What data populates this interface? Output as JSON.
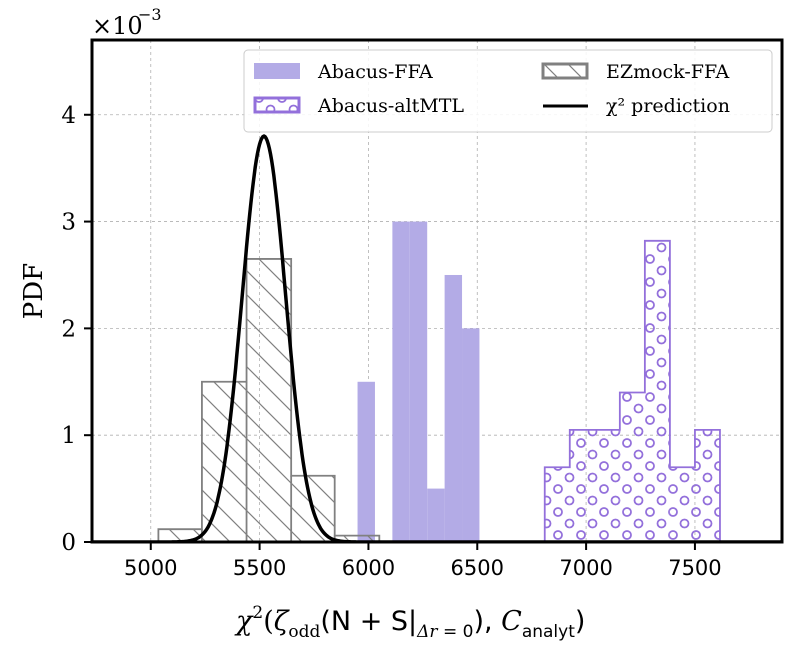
{
  "chart_data": {
    "type": "histogram",
    "title": "",
    "xlabel": "χ²(ζ_odd(N+S|Δr=0), C_analyt)",
    "ylabel": "PDF",
    "y_scale_note": "×10⁻³",
    "xlim": [
      4730,
      7900
    ],
    "ylim": [
      0,
      4.7
    ],
    "x_ticks": [
      5000,
      5500,
      6000,
      6500,
      7000,
      7500
    ],
    "y_ticks": [
      0,
      1,
      2,
      3,
      4
    ],
    "grid": true,
    "legend_position": "top-right",
    "colors": {
      "abacus_ffa": "#b3abe6",
      "abacus_altmtl": "#9370db",
      "ezmock": "#808080",
      "chi2": "#000000"
    },
    "series": [
      {
        "name": "Abacus-FFA",
        "kind": "filled-histogram",
        "bins": [
          {
            "x0": 5950,
            "x1": 6030,
            "y": 1.5
          },
          {
            "x0": 6030,
            "x1": 6110,
            "y": 0.0
          },
          {
            "x0": 6110,
            "x1": 6190,
            "y": 3.0
          },
          {
            "x0": 6190,
            "x1": 6270,
            "y": 3.0
          },
          {
            "x0": 6270,
            "x1": 6350,
            "y": 0.5
          },
          {
            "x0": 6350,
            "x1": 6430,
            "y": 2.5
          },
          {
            "x0": 6430,
            "x1": 6510,
            "y": 2.0
          }
        ]
      },
      {
        "name": "Abacus-altMTL",
        "kind": "step-histogram-dotted",
        "bins": [
          {
            "x0": 6810,
            "x1": 6925,
            "y": 0.7
          },
          {
            "x0": 6925,
            "x1": 7040,
            "y": 1.05
          },
          {
            "x0": 7040,
            "x1": 7155,
            "y": 1.05
          },
          {
            "x0": 7155,
            "x1": 7270,
            "y": 1.4
          },
          {
            "x0": 7270,
            "x1": 7385,
            "y": 2.82
          },
          {
            "x0": 7385,
            "x1": 7500,
            "y": 0.7
          },
          {
            "x0": 7500,
            "x1": 7615,
            "y": 1.05
          }
        ]
      },
      {
        "name": "EZmock-FFA",
        "kind": "step-histogram-hatched",
        "bins": [
          {
            "x0": 5035,
            "x1": 5235,
            "y": 0.12
          },
          {
            "x0": 5235,
            "x1": 5440,
            "y": 1.5
          },
          {
            "x0": 5440,
            "x1": 5645,
            "y": 2.65
          },
          {
            "x0": 5645,
            "x1": 5845,
            "y": 0.62
          },
          {
            "x0": 5845,
            "x1": 6050,
            "y": 0.06
          }
        ]
      },
      {
        "name": "χ² prediction",
        "kind": "line",
        "peak_x": 5520,
        "peak_y": 3.8,
        "sigma": 100
      }
    ]
  }
}
